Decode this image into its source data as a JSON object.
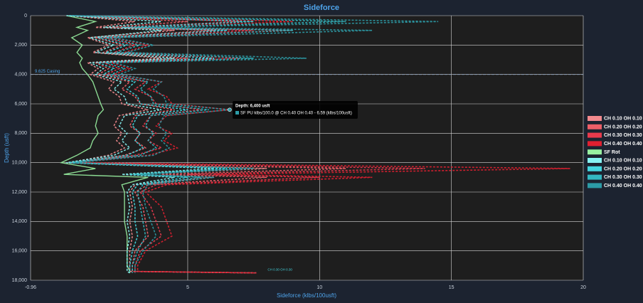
{
  "chart_data": {
    "type": "line",
    "title": "Sideforce",
    "x_label": "Sideforce (klbs/100usft)",
    "y_label": "Depth (usft)",
    "xlim": [
      -0.96,
      20
    ],
    "xticks": [
      -0.96,
      5,
      10,
      15,
      20
    ],
    "ylim": [
      0,
      18000
    ],
    "yticks": [
      0,
      {
        "value": 2000,
        "label": "2,000"
      },
      {
        "value": 4000,
        "label": "4,000"
      },
      {
        "value": 6000,
        "label": "6,000"
      },
      {
        "value": 8000,
        "label": "8,000"
      },
      {
        "value": 10000,
        "label": "10,000"
      },
      {
        "value": 12000,
        "label": "12,000"
      },
      {
        "value": 14000,
        "label": "14,000"
      },
      {
        "value": 16000,
        "label": "16,000"
      },
      {
        "value": 18000,
        "label": "18,000"
      }
    ],
    "y_inverted": true,
    "grid": true,
    "legend": "right",
    "depths": [
      0,
      400,
      800,
      1000,
      1500,
      2000,
      2500,
      2900,
      3200,
      3600,
      4000,
      4500,
      5000,
      5500,
      6000,
      6400,
      6800,
      7500,
      8000,
      8500,
      9000,
      9500,
      10000,
      10400,
      10800,
      11000,
      11500,
      12000,
      13000,
      14000,
      15000,
      16000,
      17000,
      17400,
      17500
    ],
    "series": [
      {
        "name": "CH 0.10 OH 0.10",
        "color": "#f28a8e",
        "dashed": true,
        "values": [
          0.5,
          3.0,
          1.5,
          4.5,
          1.2,
          2.0,
          1.4,
          4.0,
          1.2,
          1.6,
          1.3,
          2.2,
          2.0,
          2.4,
          2.5,
          3.5,
          2.4,
          2.2,
          2.5,
          2.3,
          2.6,
          2.0,
          0.5,
          8.0,
          3.0,
          6.0,
          3.0,
          2.8,
          2.9,
          2.8,
          2.9,
          2.8,
          2.8,
          2.8,
          7.6
        ]
      },
      {
        "name": "CH 0.20 OH 0.20",
        "color": "#ee5f68",
        "dashed": true,
        "values": [
          0.6,
          5.0,
          2.0,
          6.0,
          1.5,
          2.5,
          1.8,
          5.0,
          1.5,
          2.0,
          1.6,
          2.8,
          2.5,
          3.0,
          3.2,
          4.5,
          3.0,
          2.8,
          3.2,
          3.0,
          3.4,
          2.6,
          0.6,
          11.0,
          4.0,
          8.0,
          3.5,
          3.0,
          3.3,
          3.4,
          3.5,
          3.0,
          2.9,
          2.9,
          7.6
        ]
      },
      {
        "name": "CH 0.30 OH 0.30",
        "color": "#e83a4c",
        "dashed": true,
        "values": [
          0.7,
          7.0,
          2.5,
          7.5,
          1.8,
          3.0,
          2.2,
          6.0,
          1.8,
          2.4,
          1.9,
          3.4,
          3.0,
          3.6,
          3.8,
          5.5,
          3.6,
          3.3,
          3.8,
          3.5,
          4.0,
          3.0,
          0.7,
          14.0,
          5.0,
          10.0,
          3.8,
          3.2,
          3.6,
          3.8,
          4.0,
          3.2,
          3.0,
          3.0,
          7.6
        ]
      },
      {
        "name": "CH 0.40 OH 0.40",
        "color": "#e01f30",
        "dashed": true,
        "values": [
          0.8,
          9.0,
          3.0,
          9.0,
          2.1,
          3.5,
          2.6,
          7.0,
          2.1,
          2.8,
          2.2,
          4.0,
          3.5,
          4.2,
          4.4,
          6.6,
          4.2,
          3.8,
          4.4,
          4.1,
          4.6,
          3.5,
          0.8,
          19.5,
          6.0,
          12.0,
          4.2,
          3.4,
          4.0,
          4.2,
          4.4,
          3.4,
          3.1,
          3.1,
          7.6
        ]
      },
      {
        "name": "SF Rot",
        "color": "#98f0a0",
        "dashed": false,
        "values": [
          0.4,
          1.5,
          0.8,
          1.2,
          0.6,
          1.0,
          0.8,
          1.0,
          0.9,
          1.0,
          1.2,
          1.4,
          1.5,
          1.6,
          1.7,
          1.8,
          1.6,
          1.5,
          1.6,
          1.4,
          1.3,
          0.8,
          0.2,
          1.5,
          0.3,
          3.5,
          2.5,
          2.6,
          2.6,
          2.6,
          2.7,
          2.7,
          2.7,
          2.8,
          2.8
        ]
      },
      {
        "name": "CH 0.10 OH 0.10",
        "color": "#86f2f2",
        "dashed": true,
        "values": [
          0.4,
          4.0,
          1.8,
          4.0,
          1.3,
          2.2,
          1.5,
          4.5,
          1.3,
          1.8,
          1.5,
          2.5,
          2.2,
          2.6,
          2.7,
          4.0,
          2.6,
          2.4,
          2.7,
          2.5,
          2.8,
          2.2,
          0.4,
          6.0,
          2.5,
          4.5,
          2.9,
          2.7,
          2.8,
          2.7,
          2.8,
          2.7,
          2.7,
          2.7,
          2.8
        ]
      },
      {
        "name": "CH 0.20 OH 0.20",
        "color": "#44d6e0",
        "dashed": true,
        "values": [
          0.5,
          7.5,
          2.5,
          6.5,
          1.6,
          2.7,
          1.9,
          6.0,
          1.6,
          2.2,
          1.8,
          3.0,
          2.7,
          3.1,
          3.2,
          5.0,
          3.1,
          2.9,
          3.2,
          3.0,
          3.3,
          2.7,
          0.5,
          6.5,
          2.8,
          5.0,
          3.1,
          2.9,
          3.0,
          3.0,
          3.1,
          2.9,
          2.8,
          2.8,
          2.8
        ]
      },
      {
        "name": "CH 0.30 OH 0.30",
        "color": "#33b8c2",
        "dashed": true,
        "values": [
          0.6,
          11.0,
          3.0,
          9.0,
          1.9,
          3.2,
          2.3,
          7.5,
          1.9,
          2.6,
          2.1,
          3.5,
          3.2,
          3.6,
          3.7,
          5.8,
          3.6,
          3.4,
          3.7,
          3.5,
          3.8,
          3.2,
          0.6,
          7.0,
          3.0,
          5.5,
          3.3,
          3.1,
          3.2,
          3.3,
          3.4,
          3.1,
          2.9,
          2.9,
          2.9
        ]
      },
      {
        "name": "CH 0.40 OH 0.40",
        "color": "#2c9ba6",
        "dashed": true,
        "values": [
          0.7,
          14.5,
          3.5,
          12.0,
          2.2,
          3.7,
          2.7,
          9.5,
          2.2,
          3.0,
          2.4,
          4.0,
          3.7,
          4.1,
          4.2,
          6.59,
          4.1,
          3.9,
          4.2,
          4.0,
          4.3,
          3.7,
          0.7,
          7.5,
          3.2,
          6.0,
          3.5,
          3.3,
          3.4,
          3.6,
          3.8,
          3.3,
          3.0,
          3.0,
          3.0
        ]
      }
    ],
    "casing": {
      "label": "9.625 Casing",
      "depth": 4000
    },
    "annotation": {
      "text": "CH 0.30 OH 0.30",
      "x": 8.5,
      "y": 17300
    },
    "tooltip": {
      "series": 8,
      "point": 15,
      "title": "Depth: 6,400 usft",
      "text": "SF PU klbs/100.0 @ CH 0.40 OH 0.40 - 6.59 (klbs/100usft)"
    }
  }
}
